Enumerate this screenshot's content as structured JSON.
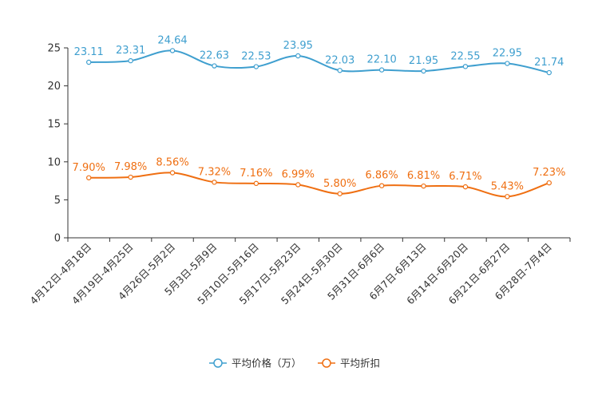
{
  "chart_data": {
    "type": "line",
    "title": "",
    "xlabel": "",
    "ylabel": "",
    "ylim": [
      0,
      25
    ],
    "yticks": [
      0,
      5,
      10,
      15,
      20,
      25
    ],
    "grid": false,
    "legend_position": "bottom-center",
    "categories": [
      "4月12日-4月18日",
      "4月19日-4月25日",
      "4月26日-5月2日",
      "5月3日-5月9日",
      "5月10日-5月16日",
      "5月17日-5月23日",
      "5月24日-5月30日",
      "5月31日-6月6日",
      "6月7日-6月13日",
      "6月14日-6月20日",
      "6月21日-6月27日",
      "6月28日-7月4日"
    ],
    "series": [
      {
        "name": "平均价格（万）",
        "color": "#3f9fcf",
        "values": [
          23.11,
          23.31,
          24.64,
          22.63,
          22.53,
          23.95,
          22.03,
          22.1,
          21.95,
          22.55,
          22.95,
          21.74
        ],
        "labels": [
          "23.11",
          "23.31",
          "24.64",
          "22.63",
          "22.53",
          "23.95",
          "22.03",
          "22.10",
          "21.95",
          "22.55",
          "22.95",
          "21.74"
        ]
      },
      {
        "name": "平均折扣",
        "color": "#ef6f12",
        "values": [
          7.9,
          7.98,
          8.56,
          7.32,
          7.16,
          6.99,
          5.8,
          6.86,
          6.81,
          6.71,
          5.43,
          7.23
        ],
        "labels": [
          "7.90%",
          "7.98%",
          "8.56%",
          "7.32%",
          "7.16%",
          "6.99%",
          "5.80%",
          "6.86%",
          "6.81%",
          "6.71%",
          "5.43%",
          "7.23%"
        ]
      }
    ]
  }
}
